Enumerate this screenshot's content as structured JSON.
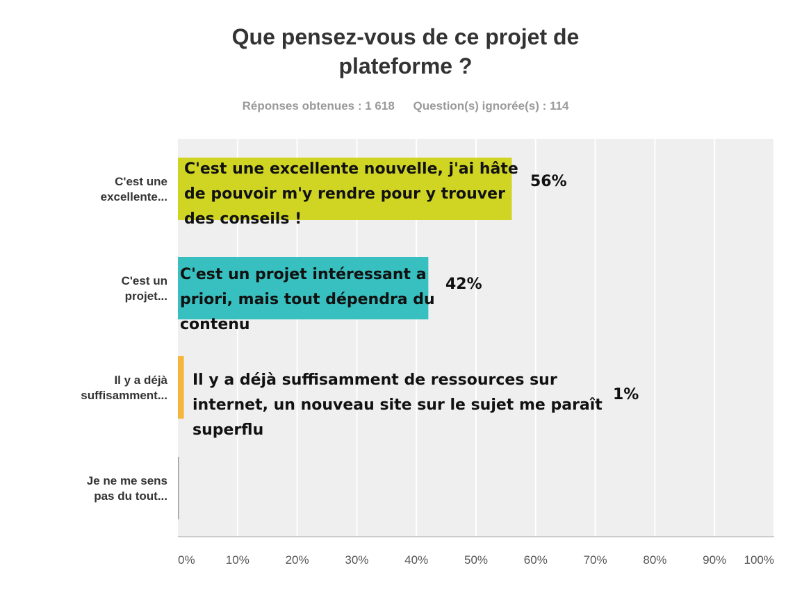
{
  "title_lines": [
    "Que pensez-vous de ce projet de",
    "plateforme ?"
  ],
  "stats": {
    "responses": "Réponses obtenues : 1 618",
    "skipped": "Question(s) ignorée(s) : 114"
  },
  "chart_data": {
    "type": "bar",
    "orientation": "horizontal",
    "categories": [
      [
        "C'est une",
        "excellente..."
      ],
      [
        "C'est un",
        "projet..."
      ],
      [
        "Il y a déjà",
        "suffisamment..."
      ],
      [
        "Je ne me sens",
        "pas du tout..."
      ]
    ],
    "values": [
      56,
      42,
      1,
      0
    ],
    "value_labels": [
      "56%",
      "42%",
      "1%",
      ""
    ],
    "annotations": [
      [
        "C'est une excellente nouvelle, j'ai hâte",
        "de pouvoir m'y rendre pour y trouver",
        "des conseils !"
      ],
      [
        "C'est un projet intéressant a",
        "priori, mais tout dépendra du",
        "contenu"
      ],
      [
        "Il y a déjà suffisamment de ressources sur",
        "internet, un nouveau site sur le sujet me paraît",
        "superflu"
      ],
      []
    ],
    "colors": [
      "#d0d524",
      "#38bfbf",
      "#f4b63d",
      "#9e9e9e"
    ],
    "xlim": [
      0,
      100
    ],
    "x_ticks": [
      0,
      10,
      20,
      30,
      40,
      50,
      60,
      70,
      80,
      90,
      100
    ],
    "x_tick_labels": [
      "0%",
      "10%",
      "20%",
      "30%",
      "40%",
      "50%",
      "60%",
      "70%",
      "80%",
      "90%",
      "100%"
    ],
    "grid": true,
    "background": "#efefef"
  }
}
